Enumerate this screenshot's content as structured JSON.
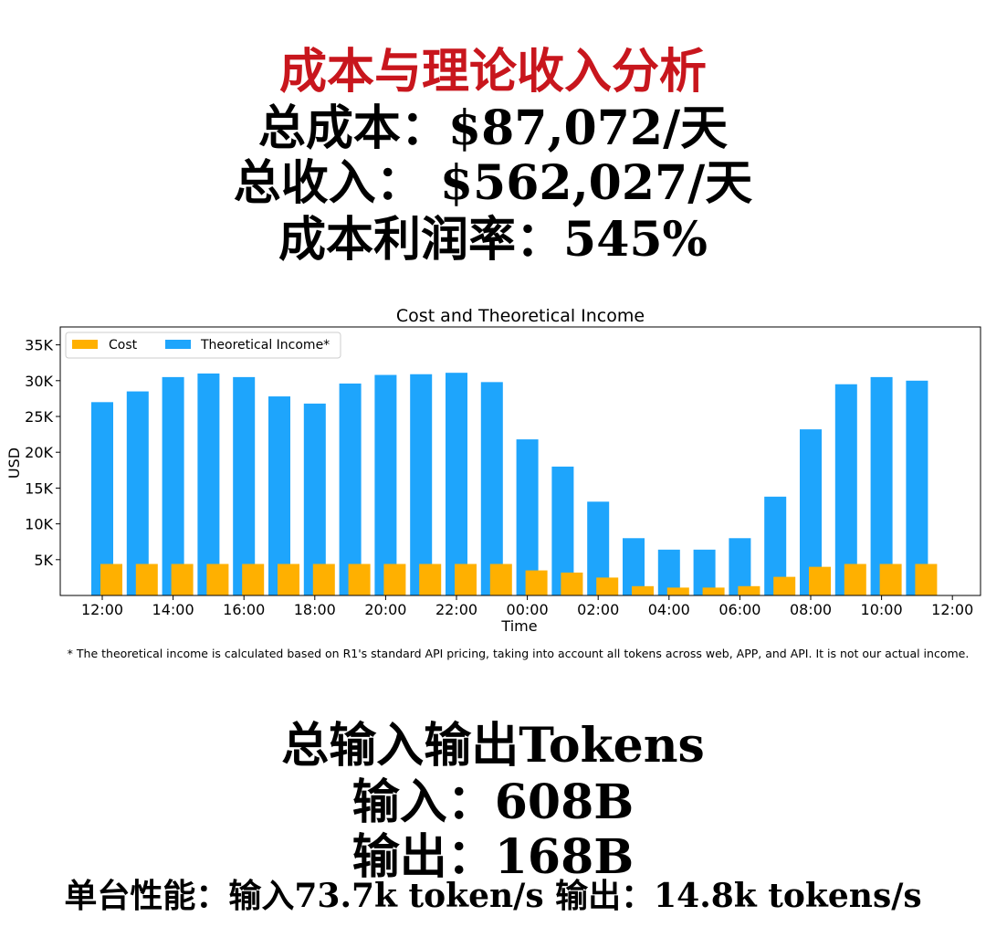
{
  "header": {
    "title": "成本与理论收入分析",
    "total_cost": "总成本：$87,072/天",
    "total_income": "总收入： $562,027/天",
    "profit_margin": "成本利润率：545%"
  },
  "chart_data": {
    "type": "bar",
    "title": "Cost and Theoretical Income",
    "xlabel": "Time",
    "ylabel": "USD",
    "ylim": [
      0,
      37500
    ],
    "yticks": [
      5000,
      10000,
      15000,
      20000,
      25000,
      30000,
      35000
    ],
    "ytick_labels": [
      "5K",
      "10K",
      "15K",
      "20K",
      "25K",
      "30K",
      "35K"
    ],
    "xtick_labels": [
      "12:00",
      "14:00",
      "16:00",
      "18:00",
      "20:00",
      "22:00",
      "00:00",
      "02:00",
      "04:00",
      "06:00",
      "08:00",
      "10:00",
      "12:00"
    ],
    "categories": [
      "12:00",
      "13:00",
      "14:00",
      "15:00",
      "16:00",
      "17:00",
      "18:00",
      "19:00",
      "20:00",
      "21:00",
      "22:00",
      "23:00",
      "00:00",
      "01:00",
      "02:00",
      "03:00",
      "04:00",
      "05:00",
      "06:00",
      "07:00",
      "08:00",
      "09:00",
      "10:00",
      "11:00"
    ],
    "series": [
      {
        "name": "Cost",
        "color": "#ffb000",
        "values": [
          4400,
          4400,
          4400,
          4400,
          4400,
          4400,
          4400,
          4400,
          4400,
          4400,
          4400,
          4400,
          3500,
          3200,
          2500,
          1300,
          1100,
          1100,
          1300,
          2600,
          4000,
          4400,
          4400,
          4400
        ]
      },
      {
        "name": "Theoretical Income*",
        "color": "#1ea5fc",
        "values": [
          27000,
          28500,
          30500,
          31000,
          30500,
          27800,
          26800,
          29600,
          30800,
          30900,
          31100,
          29800,
          21800,
          18000,
          13100,
          8000,
          6400,
          6400,
          8000,
          13800,
          23200,
          29500,
          30500,
          30000
        ]
      }
    ],
    "legend_position": "top-left",
    "grid": false
  },
  "footnote": "* The theoretical income is calculated based on R1's standard API pricing, taking into account all tokens across web, APP, and API. It is not our actual income.",
  "tokens": {
    "heading": "总输入输出Tokens",
    "input": "输入：608B",
    "output": "输出：168B",
    "per_node": "单台性能：输入73.7k token/s 输出：14.8k tokens/s"
  }
}
